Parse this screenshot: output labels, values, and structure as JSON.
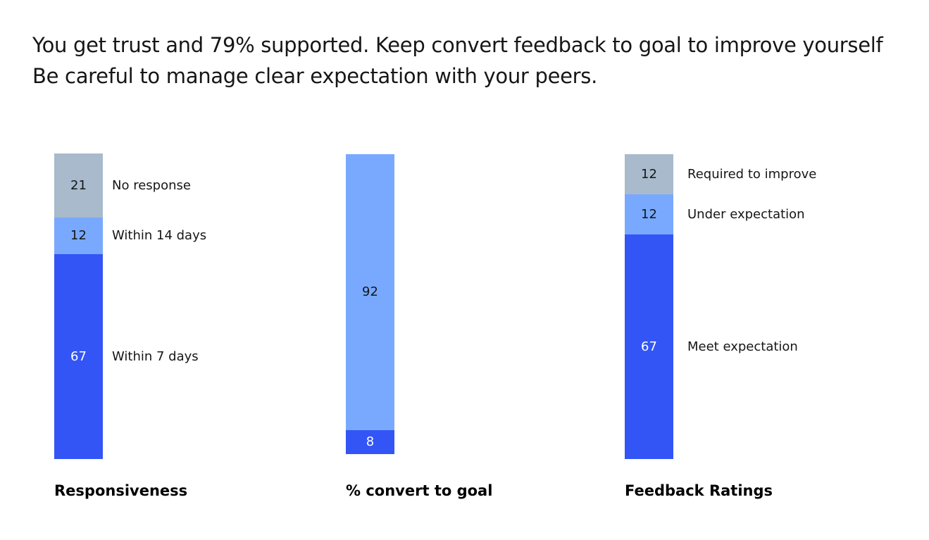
{
  "headline": {
    "line1": "You get trust and 79% supported. Keep convert feedback to goal to improve yourself",
    "line2": "Be careful to manage clear expectation with your peers."
  },
  "colors": {
    "gray": "#a8bacc",
    "light_blue": "#78a9ff",
    "blue": "#3355f5",
    "dark_text": "#161616",
    "light_text": "#ffffff"
  },
  "chart_data": [
    {
      "type": "bar",
      "stacked": true,
      "title": "Responsiveness",
      "segments_top_to_bottom": [
        {
          "label": "No response",
          "value": 21,
          "color": "#a8bacc"
        },
        {
          "label": "Within 14 days",
          "value": 12,
          "color": "#78a9ff"
        },
        {
          "label": "Within 7 days",
          "value": 67,
          "color": "#3355f5"
        }
      ]
    },
    {
      "type": "bar",
      "stacked": true,
      "title": "% convert to goal",
      "segments_top_to_bottom": [
        {
          "label": "",
          "value": 92,
          "color": "#78a9ff"
        },
        {
          "label": "",
          "value": 8,
          "color": "#3355f5"
        }
      ]
    },
    {
      "type": "bar",
      "stacked": true,
      "title": "Feedback Ratings",
      "segments_top_to_bottom": [
        {
          "label": "Required to improve",
          "value": 12,
          "color": "#a8bacc"
        },
        {
          "label": "Under expectation",
          "value": 12,
          "color": "#78a9ff"
        },
        {
          "label": "Meet expectation",
          "value": 67,
          "color": "#3355f5"
        }
      ]
    }
  ]
}
